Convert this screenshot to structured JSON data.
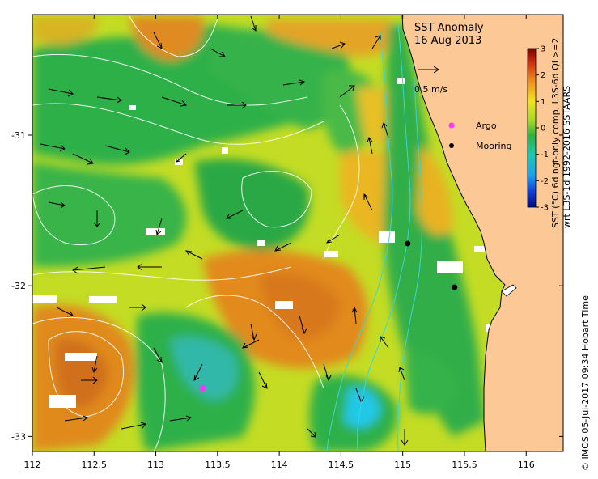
{
  "title": "SST Anomaly",
  "date": "16 Aug 2013",
  "scale_label": "0.5 m/s",
  "legend": [
    {
      "label": "Argo",
      "color": "#ff33ff"
    },
    {
      "label": "Mooring",
      "color": "#000000"
    }
  ],
  "colorbar": {
    "label_line1": "SST (°C) 6d ngt-only comp, L3S-6d QL>=2",
    "label_line2": "wrt L3S-1d 1992-2016 SSTAARS",
    "ticks": [
      "3",
      "2",
      "1",
      "0",
      "-1",
      "-2",
      "-3"
    ],
    "range": [
      -3,
      3
    ]
  },
  "axes": {
    "lon_ticks": [
      "112",
      "112.5",
      "113",
      "113.5",
      "114",
      "114.5",
      "115",
      "115.5",
      "116"
    ],
    "lat_ticks": [
      "-31",
      "-32",
      "-33"
    ],
    "lon_range": [
      112,
      116.3
    ],
    "lat_range": [
      -30.2,
      -33.1
    ]
  },
  "credit": "© IMOS 05-Jul-2017 09:34 Hobart Time",
  "markers": {
    "argo": [
      {
        "lon": 113.38,
        "lat": -32.68
      }
    ],
    "moorings": [
      {
        "lon": 115.04,
        "lat": -31.72
      },
      {
        "lon": 115.42,
        "lat": -32.01
      }
    ]
  },
  "colors": {
    "land": "#fcc896",
    "orange": "#e8901c",
    "yellow": "#e4e41a",
    "green": "#2eb048",
    "cyan": "#22c8e8"
  }
}
